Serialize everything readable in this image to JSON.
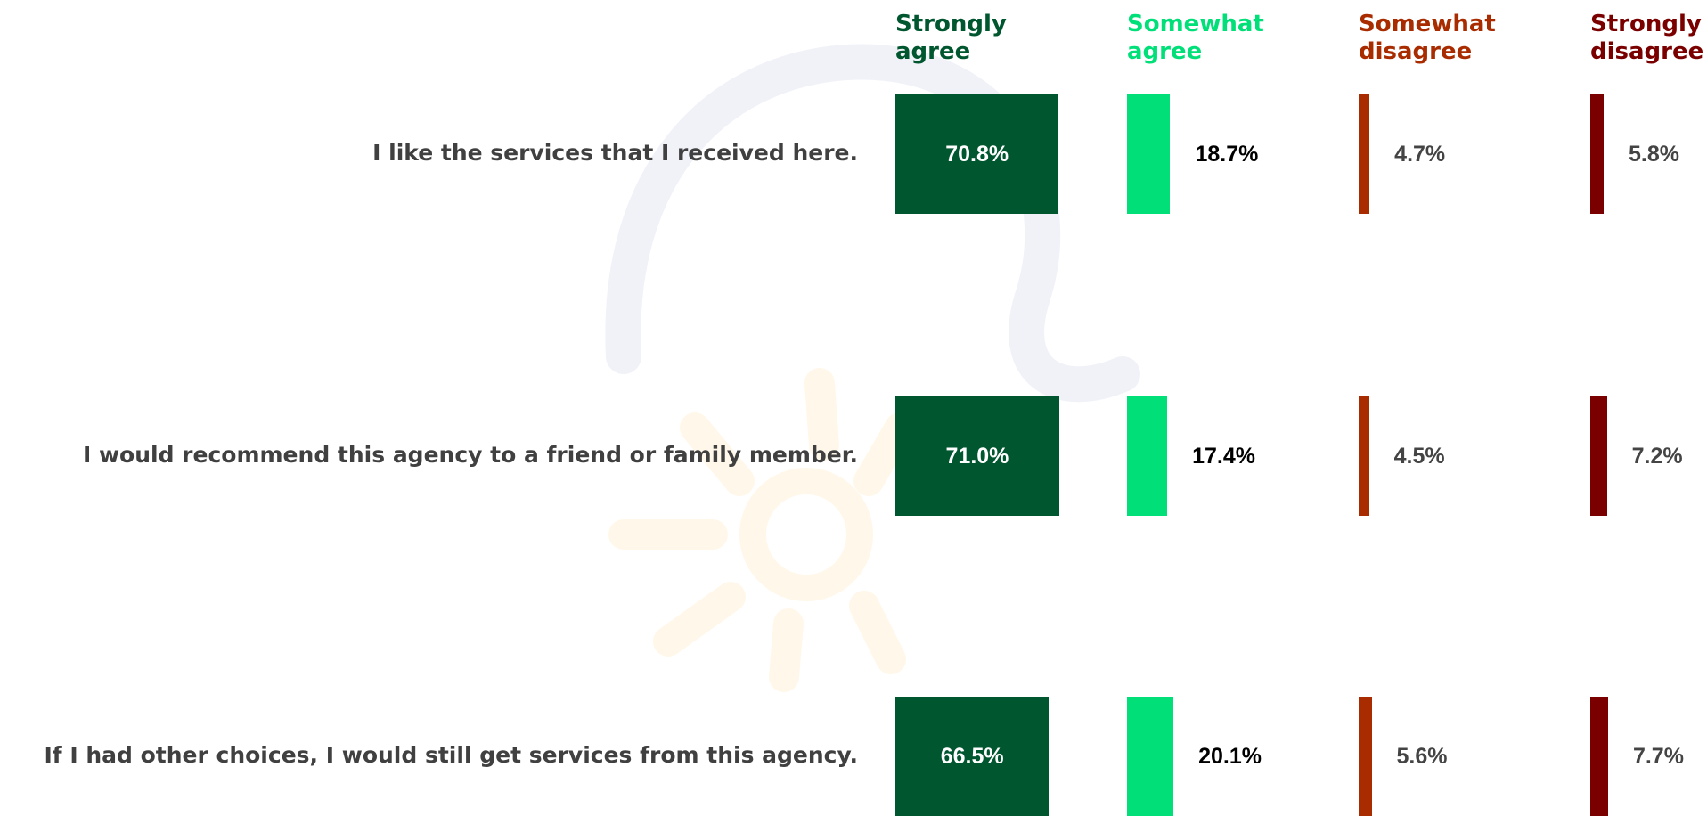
{
  "chart_data": {
    "type": "bar",
    "categories": [
      "I like the services that I received here.",
      "I would recommend this agency to a friend or family member.",
      "If I had other choices, I would still get services from this agency."
    ],
    "series": [
      {
        "name": "Strongly agree",
        "color": "#00562f",
        "values": [
          70.8,
          71.0,
          66.5
        ],
        "value_labels": [
          "70.8%",
          "71.0%",
          "66.5%"
        ]
      },
      {
        "name": "Somewhat agree",
        "color": "#00df78",
        "values": [
          18.7,
          17.4,
          20.1
        ],
        "value_labels": [
          "18.7%",
          "17.4%",
          "20.1%"
        ]
      },
      {
        "name": "Somewhat disagree",
        "color": "#a82c00",
        "values": [
          4.7,
          4.5,
          5.6
        ],
        "value_labels": [
          "4.7%",
          "4.5%",
          "5.6%"
        ]
      },
      {
        "name": "Strongly disagree",
        "color": "#7a0000",
        "values": [
          5.8,
          7.2,
          7.7
        ],
        "value_labels": [
          "5.8%",
          "7.2%",
          "7.7%"
        ]
      }
    ]
  }
}
